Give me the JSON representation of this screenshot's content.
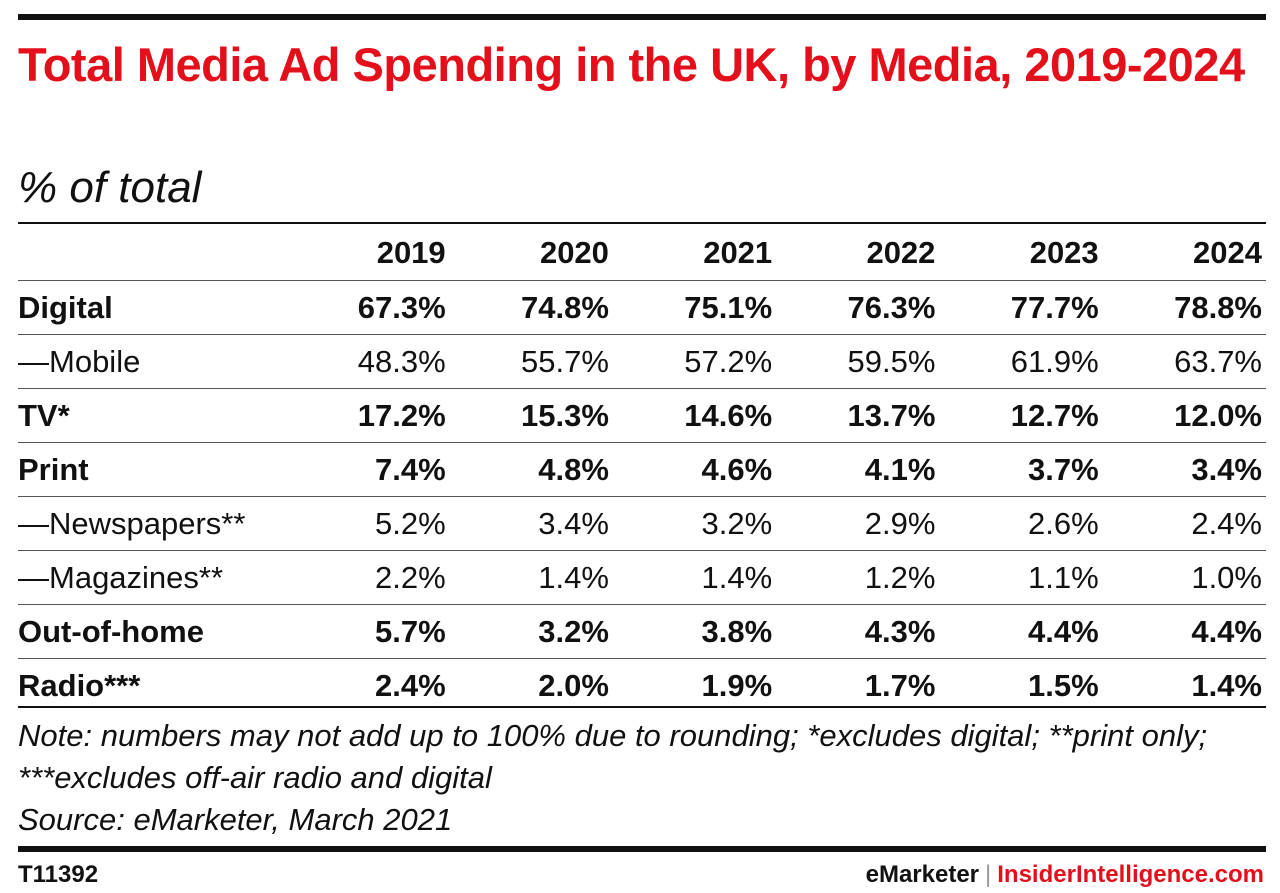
{
  "colors": {
    "title": "#e3101b",
    "brand_accent": "#e3101b",
    "text": "#111111"
  },
  "chart_data": {
    "type": "table",
    "title": "Total Media Ad Spending in the UK, by Media, 2019-2024",
    "subtitle": "% of total",
    "columns": [
      "2019",
      "2020",
      "2021",
      "2022",
      "2023",
      "2024"
    ],
    "rows": [
      {
        "label": "Digital",
        "style": "bold",
        "values": [
          "67.3%",
          "74.8%",
          "75.1%",
          "76.3%",
          "77.7%",
          "78.8%"
        ]
      },
      {
        "label": "—Mobile",
        "style": "sub",
        "values": [
          "48.3%",
          "55.7%",
          "57.2%",
          "59.5%",
          "61.9%",
          "63.7%"
        ]
      },
      {
        "label": "TV*",
        "style": "bold",
        "values": [
          "17.2%",
          "15.3%",
          "14.6%",
          "13.7%",
          "12.7%",
          "12.0%"
        ]
      },
      {
        "label": "Print",
        "style": "bold",
        "values": [
          "7.4%",
          "4.8%",
          "4.6%",
          "4.1%",
          "3.7%",
          "3.4%"
        ]
      },
      {
        "label": "—Newspapers**",
        "style": "sub",
        "values": [
          "5.2%",
          "3.4%",
          "3.2%",
          "2.9%",
          "2.6%",
          "2.4%"
        ]
      },
      {
        "label": "—Magazines**",
        "style": "sub",
        "values": [
          "2.2%",
          "1.4%",
          "1.4%",
          "1.2%",
          "1.1%",
          "1.0%"
        ]
      },
      {
        "label": "Out-of-home",
        "style": "bold",
        "values": [
          "5.7%",
          "3.2%",
          "3.8%",
          "4.3%",
          "4.4%",
          "4.4%"
        ]
      },
      {
        "label": "Radio***",
        "style": "bold",
        "values": [
          "2.4%",
          "2.0%",
          "1.9%",
          "1.7%",
          "1.5%",
          "1.4%"
        ]
      }
    ],
    "note": "Note: numbers may not add up to 100% due to rounding; *excludes digital; **print only; ***excludes off-air radio and digital",
    "source": "Source: eMarketer, March 2021"
  },
  "footer": {
    "chart_id": "T11392",
    "brand_left": "eMarketer",
    "brand_separator": "|",
    "brand_right": "InsiderIntelligence.com"
  }
}
